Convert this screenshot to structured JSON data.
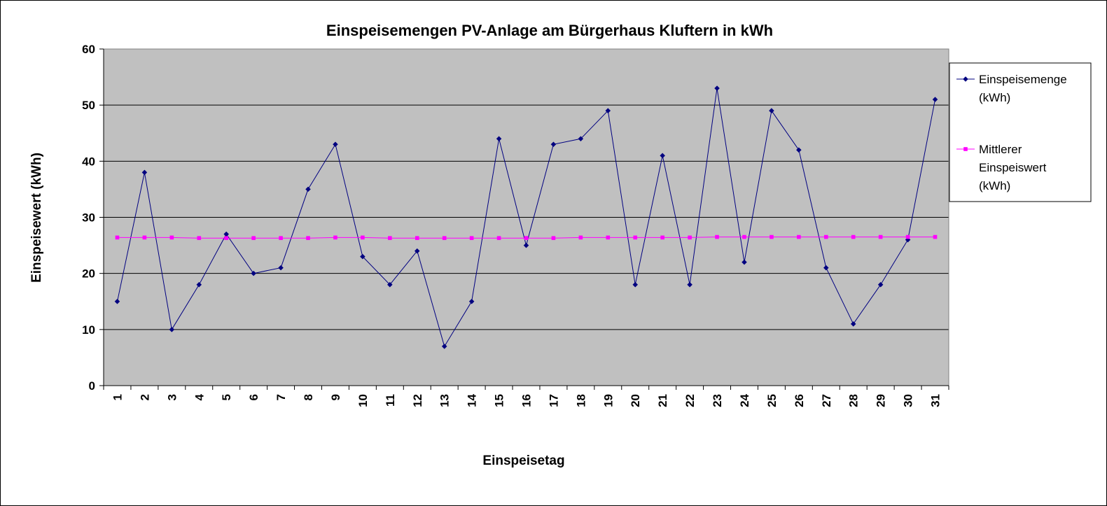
{
  "chart_data": {
    "type": "line",
    "title": "Einspeisemengen PV-Anlage am Bürgerhaus Kluftern in kWh",
    "xlabel": "Einspeisetag",
    "ylabel": "Einspeisewert (kWh)",
    "ylim": [
      0,
      60
    ],
    "yticks": [
      0,
      10,
      20,
      30,
      40,
      50,
      60
    ],
    "grid": true,
    "legend_position": "right",
    "categories": [
      "1",
      "2",
      "3",
      "4",
      "5",
      "6",
      "7",
      "8",
      "9",
      "10",
      "11",
      "12",
      "13",
      "14",
      "15",
      "16",
      "17",
      "18",
      "19",
      "20",
      "21",
      "22",
      "23",
      "24",
      "25",
      "26",
      "27",
      "28",
      "29",
      "30",
      "31"
    ],
    "series": [
      {
        "name": "Einspeisemenge (kWh)",
        "legend_lines": [
          "Einspeisemenge",
          "(kWh)"
        ],
        "color": "#000080",
        "marker": "diamond",
        "values": [
          15,
          38,
          10,
          18,
          27,
          20,
          21,
          35,
          43,
          23,
          18,
          24,
          7,
          15,
          44,
          25,
          43,
          44,
          49,
          18,
          41,
          18,
          53,
          22,
          49,
          42,
          21,
          11,
          18,
          26,
          51
        ]
      },
      {
        "name": "Mittlerer Einspeiswert (kWh)",
        "legend_lines": [
          "Mittlerer",
          "Einspeiswert",
          "(kWh)"
        ],
        "color": "#ff00ff",
        "marker": "square",
        "values": [
          26.4,
          26.4,
          26.4,
          26.3,
          26.3,
          26.3,
          26.3,
          26.3,
          26.4,
          26.4,
          26.3,
          26.3,
          26.3,
          26.3,
          26.3,
          26.3,
          26.3,
          26.4,
          26.4,
          26.4,
          26.4,
          26.4,
          26.5,
          26.5,
          26.5,
          26.5,
          26.5,
          26.5,
          26.5,
          26.5,
          26.5
        ]
      }
    ]
  },
  "colors": {
    "plot_background": "#c0c0c0",
    "gridline": "#000000"
  }
}
